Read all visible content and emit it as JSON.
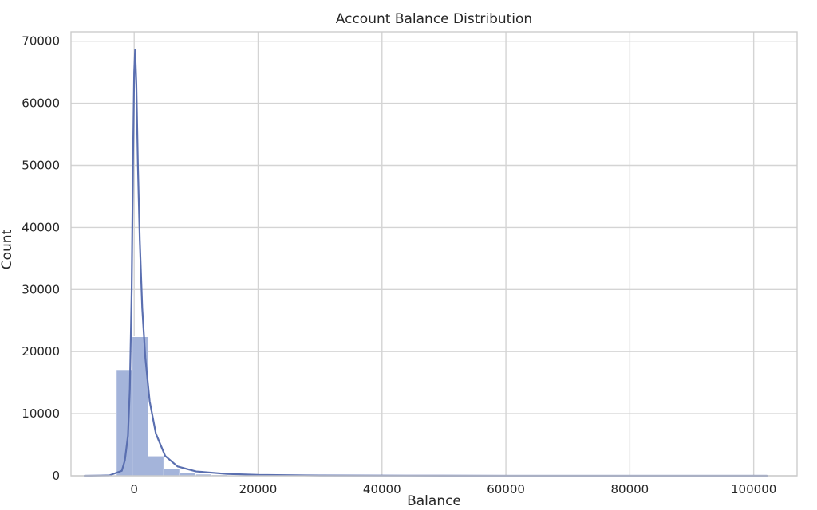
{
  "chart_data": {
    "type": "bar",
    "title": "Account Balance Distribution",
    "xlabel": "Balance",
    "ylabel": "Count",
    "xlim": [
      -10200,
      107000
    ],
    "ylim": [
      0,
      71500
    ],
    "x_ticks": [
      0,
      20000,
      40000,
      60000,
      80000,
      100000
    ],
    "x_tick_labels": [
      "0",
      "20000",
      "40000",
      "60000",
      "80000",
      "100000"
    ],
    "y_ticks": [
      0,
      10000,
      20000,
      30000,
      40000,
      50000,
      60000,
      70000
    ],
    "y_tick_labels": [
      "0",
      "10000",
      "20000",
      "30000",
      "40000",
      "50000",
      "60000",
      "70000"
    ],
    "grid": true,
    "histogram_bins": [
      {
        "x0": -8019,
        "x1": -5457,
        "count": 3
      },
      {
        "x0": -5457,
        "x1": -2895,
        "count": 40
      },
      {
        "x0": -2895,
        "x1": -333,
        "count": 17100
      },
      {
        "x0": -333,
        "x1": 2229,
        "count": 22400
      },
      {
        "x0": 2229,
        "x1": 4791,
        "count": 3200
      },
      {
        "x0": 4791,
        "x1": 7353,
        "count": 1100
      },
      {
        "x0": 7353,
        "x1": 9915,
        "count": 500
      },
      {
        "x0": 9915,
        "x1": 12477,
        "count": 280
      },
      {
        "x0": 12477,
        "x1": 15039,
        "count": 180
      },
      {
        "x0": 15039,
        "x1": 17601,
        "count": 120
      },
      {
        "x0": 17601,
        "x1": 20163,
        "count": 80
      },
      {
        "x0": 20163,
        "x1": 22725,
        "count": 60
      },
      {
        "x0": 22725,
        "x1": 25287,
        "count": 40
      },
      {
        "x0": 25287,
        "x1": 27849,
        "count": 30
      },
      {
        "x0": 27849,
        "x1": 30411,
        "count": 20
      },
      {
        "x0": 30411,
        "x1": 32973,
        "count": 15
      },
      {
        "x0": 32973,
        "x1": 35535,
        "count": 12
      },
      {
        "x0": 35535,
        "x1": 38097,
        "count": 8
      },
      {
        "x0": 38097,
        "x1": 40659,
        "count": 6
      },
      {
        "x0": 40659,
        "x1": 43221,
        "count": 5
      },
      {
        "x0": 43221,
        "x1": 45783,
        "count": 4
      },
      {
        "x0": 45783,
        "x1": 48345,
        "count": 3
      },
      {
        "x0": 48345,
        "x1": 50907,
        "count": 3
      },
      {
        "x0": 50907,
        "x1": 53469,
        "count": 2
      },
      {
        "x0": 53469,
        "x1": 56031,
        "count": 2
      },
      {
        "x0": 56031,
        "x1": 58593,
        "count": 2
      },
      {
        "x0": 58593,
        "x1": 61155,
        "count": 1
      },
      {
        "x0": 61155,
        "x1": 63717,
        "count": 1
      },
      {
        "x0": 63717,
        "x1": 66279,
        "count": 1
      },
      {
        "x0": 66279,
        "x1": 68841,
        "count": 1
      },
      {
        "x0": 68841,
        "x1": 71403,
        "count": 1
      },
      {
        "x0": 71403,
        "x1": 73965,
        "count": 1
      },
      {
        "x0": 73965,
        "x1": 76527,
        "count": 1
      },
      {
        "x0": 76527,
        "x1": 79089,
        "count": 1
      },
      {
        "x0": 79089,
        "x1": 81651,
        "count": 1
      },
      {
        "x0": 81651,
        "x1": 84213,
        "count": 0
      },
      {
        "x0": 84213,
        "x1": 86775,
        "count": 1
      },
      {
        "x0": 86775,
        "x1": 89337,
        "count": 0
      },
      {
        "x0": 89337,
        "x1": 91899,
        "count": 0
      },
      {
        "x0": 91899,
        "x1": 94461,
        "count": 0
      },
      {
        "x0": 94461,
        "x1": 97023,
        "count": 0
      },
      {
        "x0": 97023,
        "x1": 99585,
        "count": 1
      },
      {
        "x0": 99585,
        "x1": 102127,
        "count": 1
      }
    ],
    "kde_curve": [
      {
        "x": -8019,
        "y": 0
      },
      {
        "x": -4000,
        "y": 60
      },
      {
        "x": -2000,
        "y": 800
      },
      {
        "x": -1500,
        "y": 2500
      },
      {
        "x": -1000,
        "y": 6500
      },
      {
        "x": -700,
        "y": 14000
      },
      {
        "x": -400,
        "y": 30000
      },
      {
        "x": -200,
        "y": 50000
      },
      {
        "x": 0,
        "y": 65000
      },
      {
        "x": 150,
        "y": 68600
      },
      {
        "x": 350,
        "y": 63000
      },
      {
        "x": 600,
        "y": 50000
      },
      {
        "x": 900,
        "y": 38000
      },
      {
        "x": 1300,
        "y": 27000
      },
      {
        "x": 1800,
        "y": 19000
      },
      {
        "x": 2500,
        "y": 12000
      },
      {
        "x": 3500,
        "y": 6800
      },
      {
        "x": 5000,
        "y": 3200
      },
      {
        "x": 7000,
        "y": 1500
      },
      {
        "x": 10000,
        "y": 700
      },
      {
        "x": 15000,
        "y": 300
      },
      {
        "x": 20000,
        "y": 140
      },
      {
        "x": 30000,
        "y": 50
      },
      {
        "x": 50000,
        "y": 15
      },
      {
        "x": 70000,
        "y": 5
      },
      {
        "x": 102127,
        "y": 1
      }
    ],
    "bar_color": "#a4b4da",
    "line_color": "#5a6fb0",
    "grid_color": "#d4d4d4",
    "frame_color": "#cccccc"
  }
}
